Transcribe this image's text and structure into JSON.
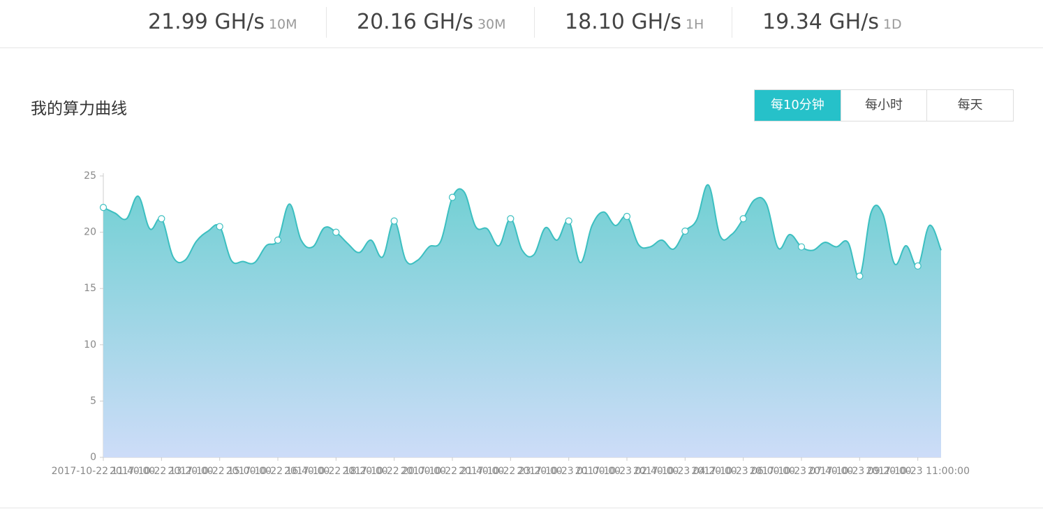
{
  "stats": [
    {
      "value": "21.99 GH/s",
      "period": "10M"
    },
    {
      "value": "20.16 GH/s",
      "period": "30M"
    },
    {
      "value": "18.10 GH/s",
      "period": "1H"
    },
    {
      "value": "19.34 GH/s",
      "period": "1D"
    }
  ],
  "section_title": "我的算力曲线",
  "tabs": [
    "每10分钟",
    "每小时",
    "每天"
  ],
  "chart_data": {
    "type": "area",
    "color": "#3cbfc0",
    "ylim": [
      0,
      25
    ],
    "yticks": [
      0,
      5,
      10,
      15,
      20,
      25
    ],
    "categories": [
      "2017-10-22 11:40:00",
      null,
      null,
      null,
      null,
      "2017-10-22 13:20:00",
      null,
      null,
      null,
      null,
      "2017-10-22 15:00:00",
      null,
      null,
      null,
      null,
      "2017-10-22 16:40:00",
      null,
      null,
      null,
      null,
      "2017-10-22 18:20:00",
      null,
      null,
      null,
      null,
      "2017-10-22 20:00:00",
      null,
      null,
      null,
      null,
      "2017-10-22 21:40:00",
      null,
      null,
      null,
      null,
      "2017-10-22 23:20:00",
      null,
      null,
      null,
      null,
      "2017-10-23 01:00:00",
      null,
      null,
      null,
      null,
      "2017-10-23 02:40:00",
      null,
      null,
      null,
      null,
      "2017-10-23 04:20:00",
      null,
      null,
      null,
      null,
      "2017-10-23 06:00:00",
      null,
      null,
      null,
      null,
      "2017-10-23 07:40:00",
      null,
      null,
      null,
      null,
      "2017-10-23 09:20:00",
      null,
      null,
      null,
      null,
      "2017-10-23 11:00:00",
      null,
      null
    ],
    "values": [
      22.2,
      21.7,
      21.2,
      23.2,
      20.3,
      21.2,
      17.8,
      17.5,
      19.2,
      20.1,
      20.5,
      17.5,
      17.4,
      17.3,
      18.8,
      19.3,
      22.5,
      19.3,
      18.7,
      20.4,
      20.0,
      19.0,
      18.2,
      19.3,
      17.8,
      21.0,
      17.5,
      17.5,
      18.7,
      19.2,
      23.1,
      23.6,
      20.5,
      20.3,
      18.8,
      21.2,
      18.4,
      18.0,
      20.4,
      19.3,
      21.0,
      17.3,
      20.6,
      21.8,
      20.6,
      21.4,
      18.9,
      18.7,
      19.3,
      18.5,
      20.1,
      21.1,
      24.2,
      19.7,
      19.8,
      21.2,
      22.9,
      22.5,
      18.6,
      19.8,
      18.7,
      18.4,
      19.1,
      18.7,
      19.1,
      16.1,
      21.8,
      21.6,
      17.2,
      18.8,
      17.0,
      20.6,
      18.4
    ]
  }
}
